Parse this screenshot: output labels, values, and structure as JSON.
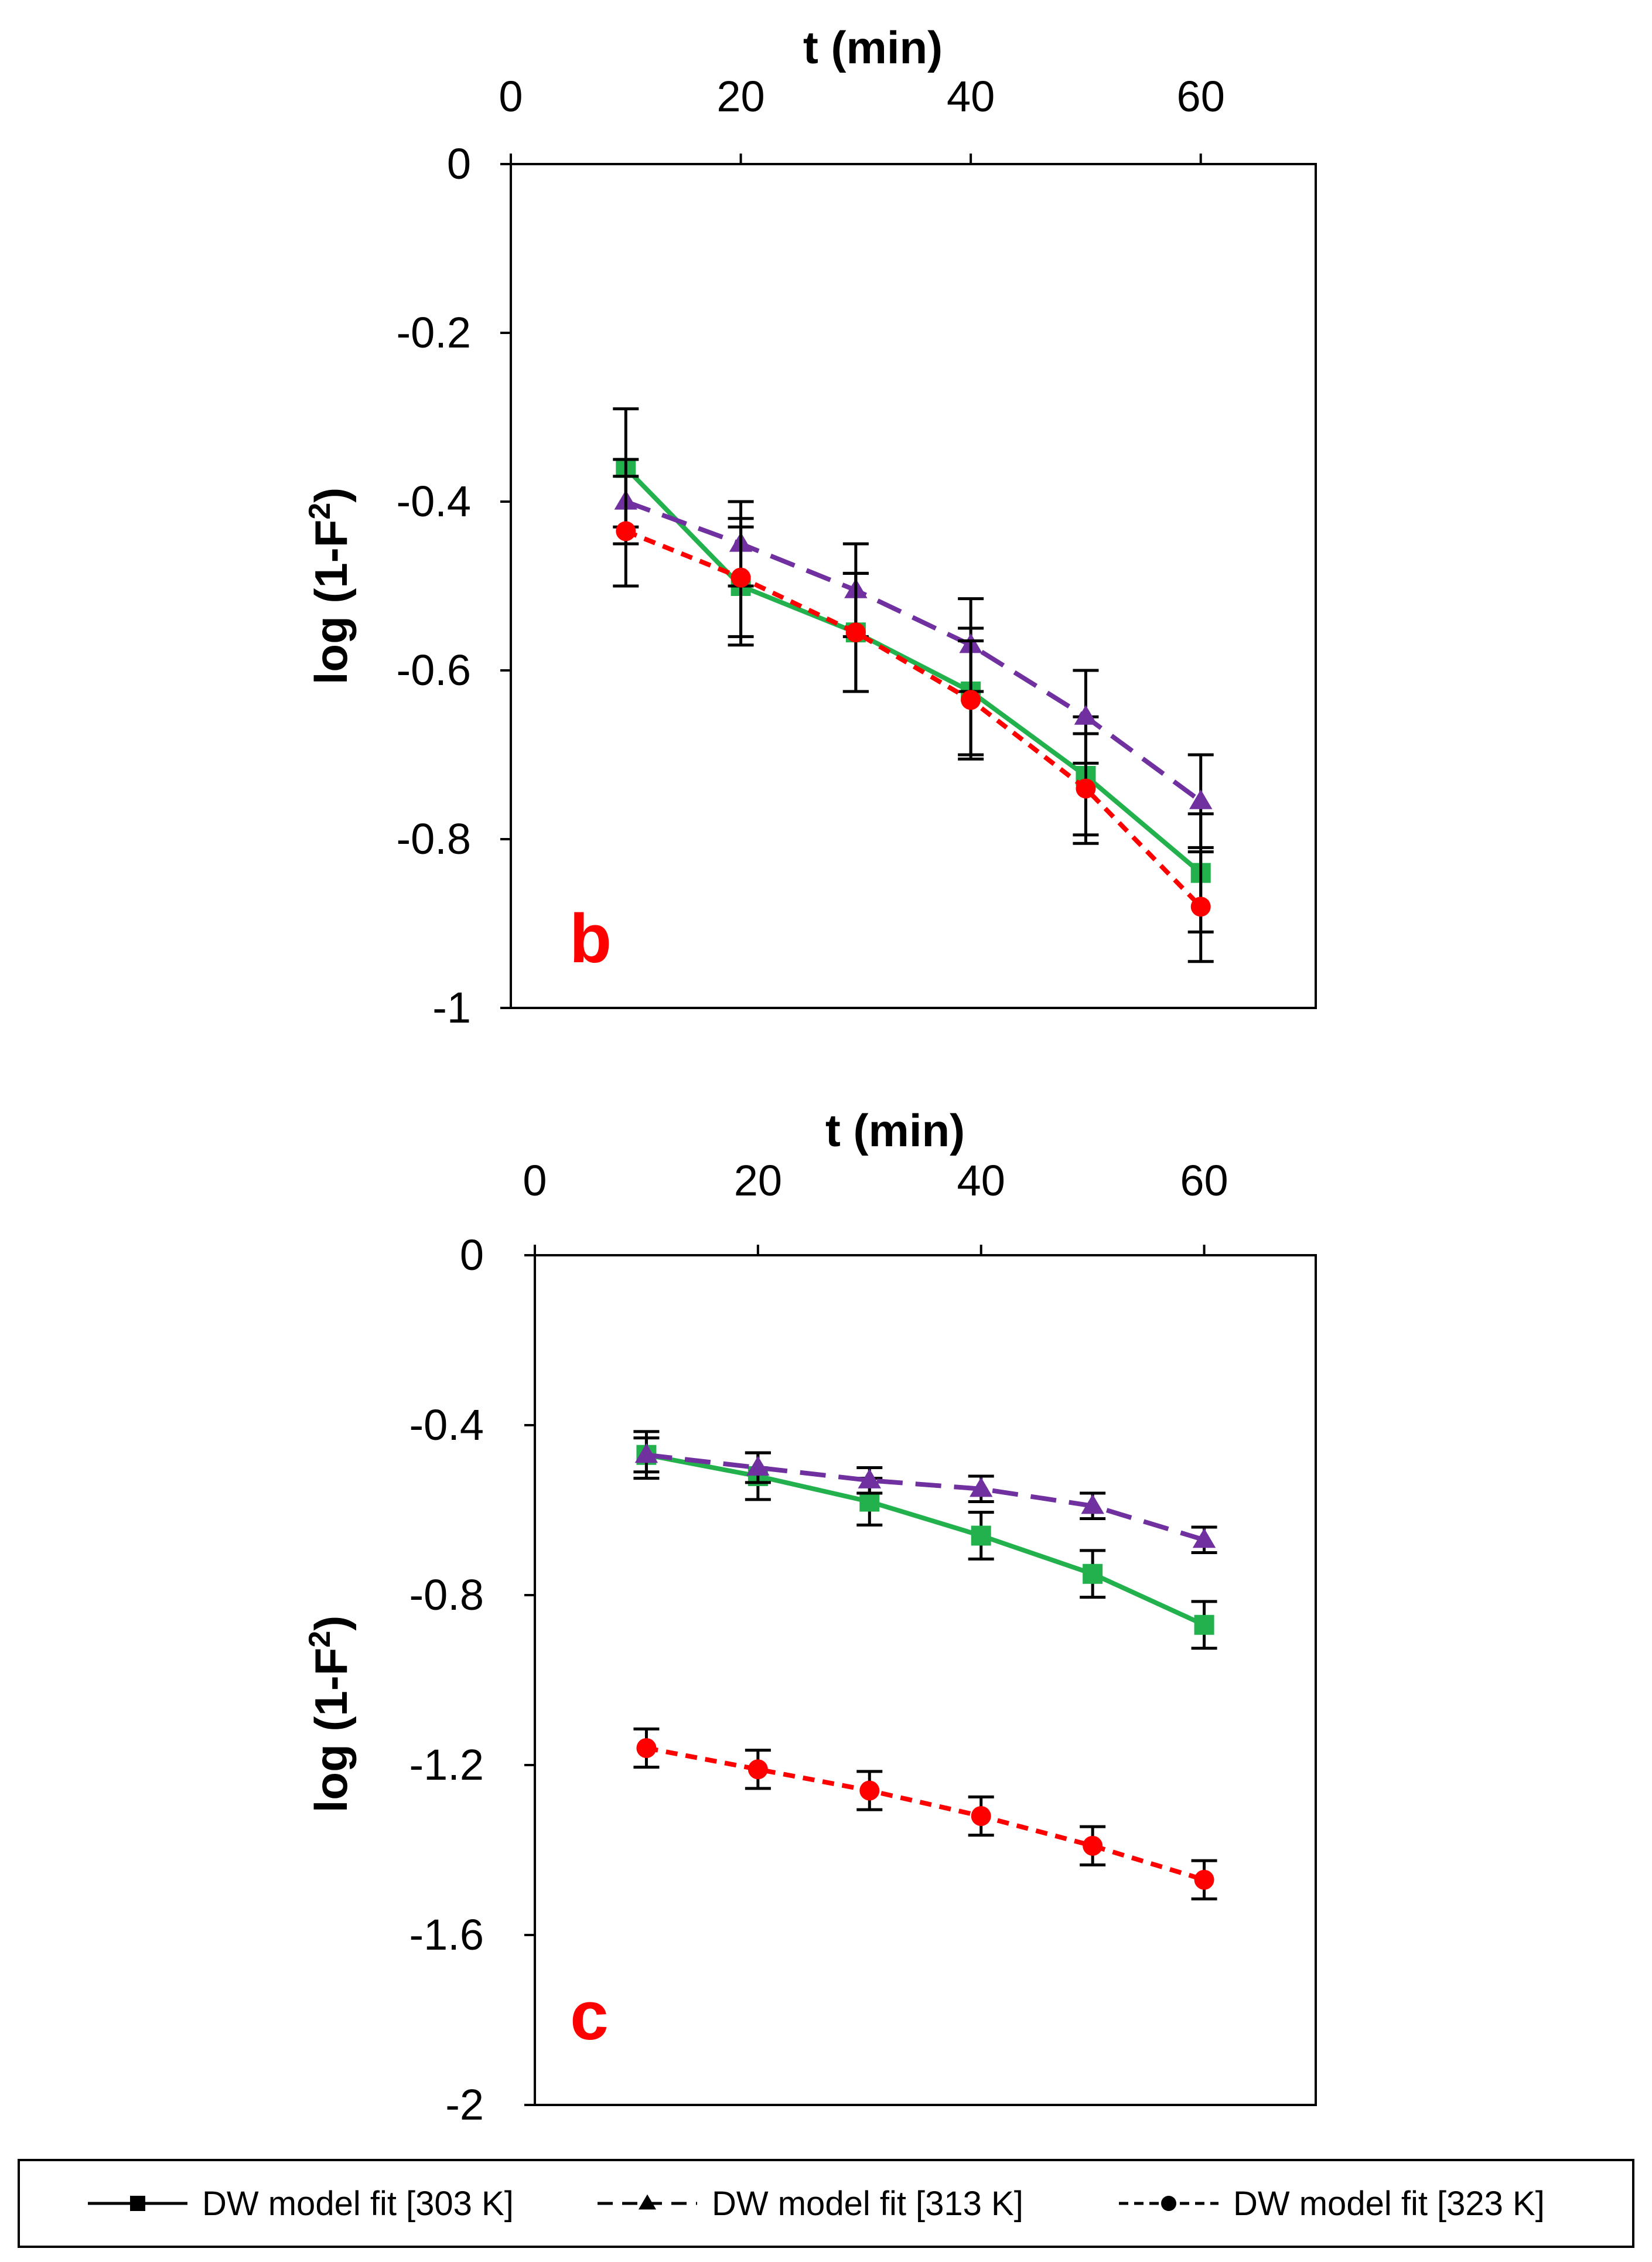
{
  "series_styles": [
    {
      "key": "303K",
      "color": "#22b14c",
      "marker": "square",
      "dash": "none"
    },
    {
      "key": "313K",
      "color": "#7030a0",
      "marker": "triangle",
      "dash": "long"
    },
    {
      "key": "323K",
      "color": "#ff0000",
      "marker": "circle",
      "dash": "short"
    }
  ],
  "legend": {
    "items": [
      {
        "label": "DW model fit [303 K]",
        "marker": "square",
        "dash": "none"
      },
      {
        "label": "DW model fit [313 K]",
        "marker": "triangle",
        "dash": "long"
      },
      {
        "label": "DW model fit [323 K]",
        "marker": "circle",
        "dash": "short"
      }
    ]
  },
  "chart_data": [
    {
      "type": "line",
      "panel_label": "b",
      "title": "",
      "xlabel": "t (min)",
      "ylabel_main": "log (1-F",
      "ylabel_sup": "2",
      "ylabel_tail": ")",
      "xlim": [
        0,
        70
      ],
      "ylim": [
        -1,
        0
      ],
      "x_ticks": [
        0,
        20,
        40,
        60
      ],
      "x_tick_labels": [
        "0",
        "20",
        "40",
        "60"
      ],
      "y_ticks": [
        0,
        -0.2,
        -0.4,
        -0.6,
        -0.8,
        -1
      ],
      "y_tick_labels": [
        "0",
        "-0.2",
        "-0.4",
        "-0.6",
        "-0.8",
        "-1"
      ],
      "x_axis_position": "top",
      "series": [
        {
          "name": "DW model fit [303 K]",
          "x": [
            10,
            20,
            30,
            40,
            50,
            60
          ],
          "y": [
            -0.36,
            -0.5,
            -0.555,
            -0.625,
            -0.725,
            -0.84
          ],
          "error": [
            0.07,
            0.07,
            0.07,
            0.075,
            0.07,
            0.07
          ]
        },
        {
          "name": "DW model fit [313 K]",
          "x": [
            10,
            20,
            30,
            40,
            50,
            60
          ],
          "y": [
            -0.4,
            -0.45,
            -0.505,
            -0.57,
            -0.655,
            -0.755
          ],
          "error": [
            0.05,
            0.05,
            0.055,
            0.055,
            0.055,
            0.055
          ]
        },
        {
          "name": "DW model fit [323 K]",
          "x": [
            10,
            20,
            30,
            40,
            50,
            60
          ],
          "y": [
            -0.435,
            -0.49,
            -0.555,
            -0.635,
            -0.74,
            -0.88
          ],
          "error": [
            0.065,
            0.07,
            0.07,
            0.07,
            0.065,
            0.065
          ]
        }
      ]
    },
    {
      "type": "line",
      "panel_label": "c",
      "title": "",
      "xlabel": "t (min)",
      "ylabel_main": "log (1-F",
      "ylabel_sup": "2",
      "ylabel_tail": ")",
      "xlim": [
        0,
        70
      ],
      "ylim": [
        -2,
        0
      ],
      "x_ticks": [
        0,
        20,
        40,
        60
      ],
      "x_tick_labels": [
        "0",
        "20",
        "40",
        "60"
      ],
      "y_ticks": [
        0,
        -0.4,
        -0.8,
        -1.2,
        -1.6,
        -2
      ],
      "y_tick_labels": [
        "0",
        "-0.4",
        "-0.8",
        "-1.2",
        "-1.6",
        "-2"
      ],
      "x_axis_position": "top",
      "series": [
        {
          "name": "DW model fit [303 K]",
          "x": [
            10,
            20,
            30,
            40,
            50,
            60
          ],
          "y": [
            -0.47,
            -0.52,
            -0.58,
            -0.66,
            -0.75,
            -0.87
          ],
          "error": [
            0.055,
            0.055,
            0.055,
            0.055,
            0.055,
            0.055
          ]
        },
        {
          "name": "DW model fit [313 K]",
          "x": [
            10,
            20,
            30,
            40,
            50,
            60
          ],
          "y": [
            -0.47,
            -0.5,
            -0.53,
            -0.55,
            -0.59,
            -0.67
          ],
          "error": [
            0.04,
            0.035,
            0.03,
            0.03,
            0.03,
            0.03
          ]
        },
        {
          "name": "DW model fit [323 K]",
          "x": [
            10,
            20,
            30,
            40,
            50,
            60
          ],
          "y": [
            -1.16,
            -1.21,
            -1.26,
            -1.32,
            -1.39,
            -1.47
          ],
          "error": [
            0.045,
            0.045,
            0.045,
            0.045,
            0.045,
            0.045
          ]
        }
      ]
    }
  ]
}
